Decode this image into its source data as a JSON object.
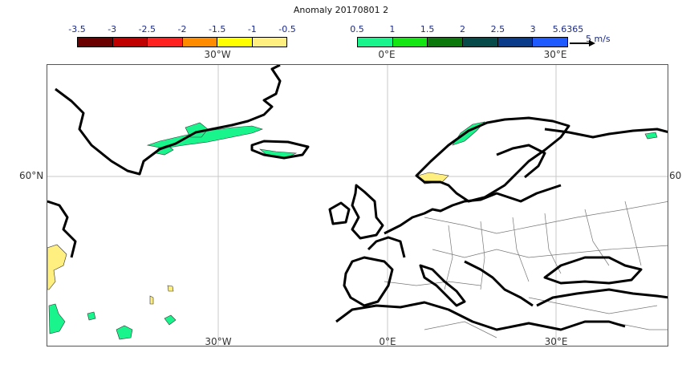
{
  "title": "Anomaly 20170801 2",
  "legend_negative": {
    "ticks": [
      "-3.5",
      "-3",
      "-2.5",
      "-2",
      "-1.5",
      "-1",
      "-0.5"
    ],
    "colors": [
      "#6b0000",
      "#c00000",
      "#ff2020",
      "#ff8c00",
      "#ffff00",
      "#ffef80"
    ]
  },
  "legend_positive": {
    "ticks": [
      "0.5",
      "1",
      "1.5",
      "2",
      "2.5",
      "3",
      "5.6365"
    ],
    "colors": [
      "#19f58c",
      "#14e614",
      "#0a780a",
      "#064a4a",
      "#0a3a8a",
      "#1e5aff"
    ]
  },
  "vector_legend": {
    "label": "5 m/s"
  },
  "map": {
    "top_lon_labels": [
      "30°W",
      "0°E",
      "30°E"
    ],
    "bottom_lon_labels": [
      "30°W",
      "0°E",
      "30°E"
    ],
    "lat_label_left": "60°N",
    "lat_label_right": "60"
  }
}
